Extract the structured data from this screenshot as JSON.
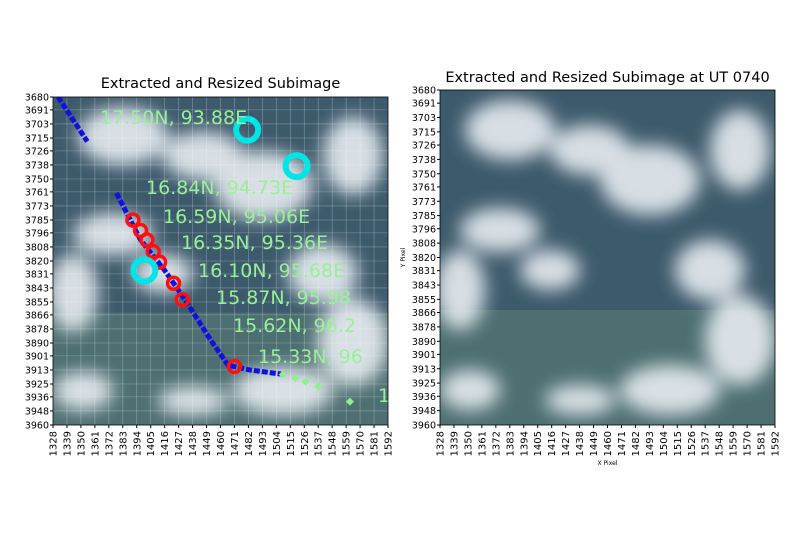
{
  "chart_data": [
    {
      "type": "scatter",
      "title": "Extracted and Resized Subimage",
      "xlim": [
        1328,
        1592
      ],
      "ylim": [
        3960,
        3680
      ],
      "xticks": [
        1328,
        1339,
        1350,
        1361,
        1372,
        1383,
        1394,
        1405,
        1416,
        1427,
        1438,
        1449,
        1460,
        1471,
        1482,
        1493,
        1504,
        1515,
        1526,
        1537,
        1548,
        1559,
        1570,
        1581,
        1592
      ],
      "yticks": [
        3680,
        3691,
        3703,
        3715,
        3726,
        3738,
        3750,
        3761,
        3773,
        3785,
        3796,
        3808,
        3820,
        3831,
        3843,
        3855,
        3866,
        3878,
        3890,
        3901,
        3913,
        3925,
        3936,
        3948,
        3960
      ],
      "grid": true,
      "annotations": [
        "17.50N, 93.88E",
        "16.84N, 94.73E",
        "16.59N, 95.06E",
        "16.35N, 95.36E",
        "16.10N, 95.68E",
        "15.87N, 95.98",
        "15.62N, 96.2",
        "15.33N, 96",
        "1"
      ],
      "series": [
        {
          "marker": "track",
          "color": "#1010e0",
          "x": [
            1332,
            1355,
            null,
            1378,
            1397,
            1416,
            1432,
            1452,
            1466,
            1483,
            1511
          ],
          "y": [
            3680,
            3718,
            null,
            3762,
            3802,
            3828,
            3853,
            3887,
            3909,
            3913,
            3917
          ]
        },
        {
          "marker": "circle",
          "color": "#ff1010",
          "x": [
            1391,
            1397,
            1402,
            1407,
            1412,
            1423,
            1430,
            1471
          ],
          "y": [
            3785,
            3794,
            3802,
            3812,
            3821,
            3839,
            3853,
            3910
          ]
        },
        {
          "marker": "ring",
          "color": "#00e5e5",
          "x": [
            1481,
            1520,
            1400
          ],
          "y": [
            3708,
            3739,
            3828
          ]
        },
        {
          "marker": "diamond",
          "color": "#90ee90",
          "x": [
            1509,
            1519,
            1527,
            1537,
            1562
          ],
          "y": [
            3917,
            3920,
            3923,
            3927,
            3940
          ]
        }
      ]
    },
    {
      "type": "image",
      "title": "Extracted and Resized Subimage at UT 0740",
      "xlabel": "X Pixel",
      "ylabel": "Y Pixel",
      "xlim": [
        1328,
        1592
      ],
      "ylim": [
        3960,
        3680
      ],
      "xticks": [
        1328,
        1339,
        1350,
        1361,
        1372,
        1383,
        1394,
        1405,
        1416,
        1427,
        1438,
        1449,
        1460,
        1471,
        1482,
        1493,
        1504,
        1515,
        1526,
        1537,
        1548,
        1559,
        1570,
        1581,
        1592
      ],
      "yticks": [
        3680,
        3691,
        3703,
        3715,
        3726,
        3738,
        3750,
        3761,
        3773,
        3785,
        3796,
        3808,
        3820,
        3831,
        3843,
        3855,
        3866,
        3878,
        3890,
        3901,
        3913,
        3925,
        3936,
        3948,
        3960
      ],
      "grid": false
    }
  ]
}
